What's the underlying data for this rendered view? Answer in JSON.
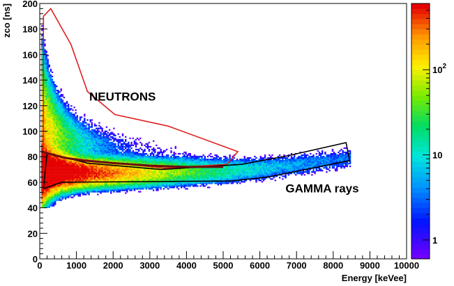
{
  "chart_data": {
    "type": "heatmap",
    "xlabel": "Energy [keVee]",
    "ylabel": "zco [ns]",
    "xlim": [
      0,
      10000
    ],
    "ylim": [
      0,
      200
    ],
    "x_ticks": [
      "0",
      "1000",
      "2000",
      "3000",
      "4000",
      "5000",
      "6000",
      "7000",
      "8000",
      "9000",
      "10000"
    ],
    "y_ticks": [
      "0",
      "20",
      "40",
      "60",
      "80",
      "100",
      "120",
      "140",
      "160",
      "180",
      "200"
    ],
    "colorbar": {
      "scale": "log",
      "range": [
        0.6,
        600
      ],
      "tick_labels": [
        {
          "value": 1,
          "base": "1",
          "exp": ""
        },
        {
          "value": 10,
          "base": "10",
          "exp": ""
        },
        {
          "value": 100,
          "base": "10",
          "exp": "2"
        }
      ]
    },
    "annotations": [
      {
        "text": "NEUTRONS",
        "x": 1350,
        "y": 124
      },
      {
        "text": "GAMMA rays",
        "x": 6700,
        "y": 52
      }
    ],
    "regions": [
      {
        "name": "neutron-cut",
        "color": "#e02020",
        "points": [
          [
            100,
            190
          ],
          [
            300,
            196
          ],
          [
            850,
            168
          ],
          [
            1300,
            131
          ],
          [
            2050,
            113
          ],
          [
            3500,
            104
          ],
          [
            5400,
            84
          ],
          [
            5100,
            74
          ],
          [
            3400,
            71
          ],
          [
            1400,
            77
          ],
          [
            500,
            80
          ],
          [
            100,
            83
          ],
          [
            100,
            190
          ]
        ]
      },
      {
        "name": "gamma-cut",
        "color": "#000000",
        "points": [
          [
            100,
            55
          ],
          [
            600,
            60
          ],
          [
            5200,
            61
          ],
          [
            6200,
            64
          ],
          [
            8450,
            77
          ],
          [
            8350,
            91
          ],
          [
            6800,
            81
          ],
          [
            5500,
            74
          ],
          [
            3300,
            70
          ],
          [
            1300,
            75
          ],
          [
            200,
            83
          ],
          [
            100,
            55
          ]
        ]
      }
    ],
    "separation_curve": {
      "color": "#6b0f0f",
      "points": [
        [
          50,
          84
        ],
        [
          300,
          82
        ],
        [
          700,
          79
        ],
        [
          1200,
          77
        ],
        [
          2000,
          75
        ],
        [
          3000,
          73
        ],
        [
          4000,
          72
        ],
        [
          5000,
          72
        ]
      ]
    },
    "distributions": {
      "gamma_band": {
        "ridge": [
          [
            50,
            68
          ],
          [
            1000,
            67
          ],
          [
            3000,
            67
          ],
          [
            5000,
            68
          ],
          [
            6000,
            70
          ],
          [
            7000,
            73
          ],
          [
            8400,
            78
          ]
        ],
        "spread": 4.5
      },
      "neutron_band": {
        "ridge": [
          [
            100,
            105
          ],
          [
            500,
            98
          ],
          [
            1000,
            92
          ],
          [
            2000,
            87
          ],
          [
            3000,
            83
          ],
          [
            4000,
            80
          ],
          [
            5200,
            78
          ]
        ],
        "spread": 11
      }
    }
  }
}
